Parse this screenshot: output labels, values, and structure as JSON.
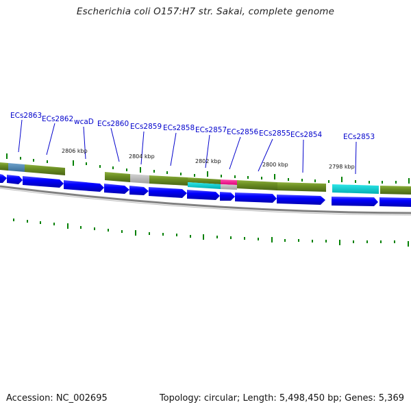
{
  "header": {
    "title": "Escherichia coli O157:H7 str. Sakai, complete genome"
  },
  "footer": {
    "accession": "Accession: NC_002695",
    "summary": "Topology: circular; Length: 5,498,450 bp; Genes: 5,369"
  },
  "colors": {
    "gene_arrow": "#0000ff",
    "cds_default": "#6b8e23",
    "cds_steelblue": "#4682b4",
    "cds_gray": "#b4b4b4",
    "cds_cyan": "#00ced1",
    "cds_pink": "#ff1493",
    "tick_mark": "#008000",
    "backbone": "#808080",
    "gene_label": "#0000cc"
  },
  "map": {
    "gene_labels": [
      {
        "text": "ECs2863"
      },
      {
        "text": "ECs2862"
      },
      {
        "text": "wcaD"
      },
      {
        "text": "ECs2860"
      },
      {
        "text": "ECs2859"
      },
      {
        "text": "ECs2858"
      },
      {
        "text": "ECs2857"
      },
      {
        "text": "ECs2856"
      },
      {
        "text": "ECs2855"
      },
      {
        "text": "ECs2854"
      },
      {
        "text": "ECs2853"
      }
    ],
    "kbp_labels": [
      {
        "text": "2806 kbp"
      },
      {
        "text": "2804 kbp"
      },
      {
        "text": "2802 kbp"
      },
      {
        "text": "2800 kbp"
      },
      {
        "text": "2798 kbp"
      }
    ]
  }
}
